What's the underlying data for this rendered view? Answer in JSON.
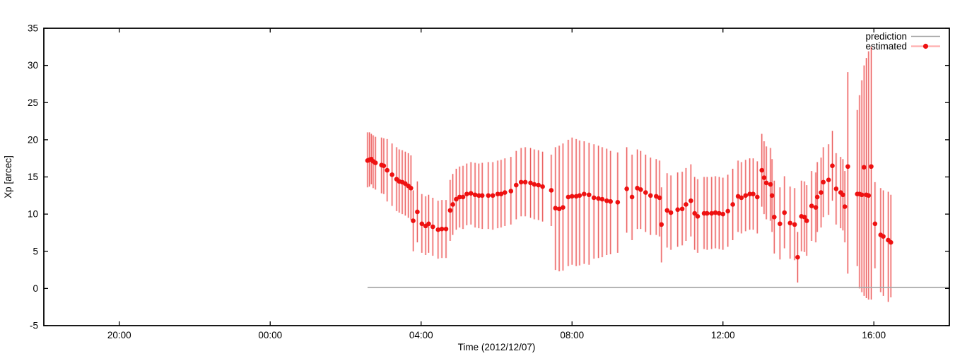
{
  "figure": {
    "background": "#ffffff",
    "axis_color": "#000000",
    "prediction_color": "#a3a3a3",
    "point_color": "#ee1111",
    "errorbar_core_color": "#e03434",
    "errorbar_halo_color": "#ff9a9a"
  },
  "legend": {
    "prediction_label": "prediction",
    "estimated_label": "estimated"
  },
  "chart_data": {
    "type": "scatter",
    "title": "",
    "xlabel": "Time (2012/12/07)",
    "ylabel": "Xp [arcec]",
    "ylim": [
      -5,
      35
    ],
    "xlim_hours_from_midnight": [
      -6,
      18
    ],
    "grid": false,
    "legend_position": "top-right-inside",
    "y_ticks": [
      {
        "v": -5,
        "label": "-5"
      },
      {
        "v": 0,
        "label": "0"
      },
      {
        "v": 5,
        "label": "5"
      },
      {
        "v": 10,
        "label": "10"
      },
      {
        "v": 15,
        "label": "15"
      },
      {
        "v": 20,
        "label": "20"
      },
      {
        "v": 25,
        "label": "25"
      },
      {
        "v": 30,
        "label": "30"
      },
      {
        "v": 35,
        "label": "35"
      }
    ],
    "x_ticks": [
      {
        "t": -4,
        "label": "20:00"
      },
      {
        "t": 0,
        "label": "00:00"
      },
      {
        "t": 4,
        "label": "04:00"
      },
      {
        "t": 8,
        "label": "08:00"
      },
      {
        "t": 12,
        "label": "12:00"
      },
      {
        "t": 16,
        "label": "16:00"
      }
    ],
    "series": [
      {
        "name": "prediction",
        "type": "line",
        "color": "#a3a3a3",
        "points_tv": [
          [
            2.58,
            0.15
          ],
          [
            18.0,
            0.15
          ]
        ]
      },
      {
        "name": "estimated",
        "type": "scatter_errorbars",
        "color": "#ee1111",
        "points_tvlh": [
          [
            2.58,
            17.2,
            13.6,
            21.0
          ],
          [
            2.63,
            17.3,
            13.7,
            21.0
          ],
          [
            2.68,
            17.4,
            14.0,
            20.8
          ],
          [
            2.73,
            17.1,
            13.5,
            20.6
          ],
          [
            2.79,
            16.9,
            13.3,
            20.4
          ],
          [
            2.95,
            16.6,
            12.8,
            20.3
          ],
          [
            3.01,
            16.5,
            12.7,
            20.2
          ],
          [
            3.1,
            15.9,
            11.7,
            20.1
          ],
          [
            3.23,
            15.3,
            11.1,
            19.5
          ],
          [
            3.35,
            14.7,
            10.4,
            19.0
          ],
          [
            3.42,
            14.4,
            10.2,
            18.7
          ],
          [
            3.5,
            14.3,
            10.0,
            18.6
          ],
          [
            3.58,
            14.1,
            9.8,
            18.4
          ],
          [
            3.66,
            13.8,
            9.5,
            18.2
          ],
          [
            3.73,
            13.5,
            9.2,
            17.9
          ],
          [
            3.79,
            9.1,
            5.0,
            13.2
          ],
          [
            3.9,
            10.3,
            6.2,
            14.4
          ],
          [
            4.02,
            8.7,
            4.8,
            12.7
          ],
          [
            4.12,
            8.4,
            4.5,
            12.4
          ],
          [
            4.2,
            8.7,
            4.8,
            12.6
          ],
          [
            4.31,
            8.3,
            4.4,
            12.2
          ],
          [
            4.45,
            7.9,
            4.0,
            11.8
          ],
          [
            4.55,
            8.0,
            4.1,
            11.9
          ],
          [
            4.66,
            8.0,
            4.1,
            11.9
          ],
          [
            4.77,
            10.5,
            6.4,
            14.6
          ],
          [
            4.84,
            11.3,
            7.2,
            15.4
          ],
          [
            4.93,
            12.0,
            7.9,
            16.1
          ],
          [
            5.02,
            12.3,
            8.2,
            16.4
          ],
          [
            5.11,
            12.3,
            8.0,
            16.5
          ],
          [
            5.21,
            12.7,
            8.5,
            16.8
          ],
          [
            5.32,
            12.8,
            8.6,
            17.0
          ],
          [
            5.43,
            12.6,
            8.2,
            16.9
          ],
          [
            5.53,
            12.5,
            8.1,
            16.8
          ],
          [
            5.62,
            12.5,
            8.0,
            16.9
          ],
          [
            5.78,
            12.5,
            8.0,
            17.0
          ],
          [
            5.9,
            12.5,
            7.9,
            17.0
          ],
          [
            6.03,
            12.7,
            8.1,
            17.2
          ],
          [
            6.12,
            12.7,
            8.2,
            17.3
          ],
          [
            6.22,
            12.9,
            8.4,
            17.5
          ],
          [
            6.38,
            13.1,
            8.6,
            17.7
          ],
          [
            6.52,
            13.9,
            9.3,
            18.5
          ],
          [
            6.65,
            14.3,
            9.7,
            18.9
          ],
          [
            6.76,
            14.3,
            9.7,
            19.0
          ],
          [
            6.9,
            14.2,
            9.5,
            18.9
          ],
          [
            7.0,
            14.0,
            9.3,
            18.7
          ],
          [
            7.11,
            13.9,
            9.2,
            18.6
          ],
          [
            7.22,
            13.7,
            9.0,
            18.4
          ],
          [
            7.45,
            13.2,
            8.4,
            18.0
          ],
          [
            7.56,
            10.8,
            2.5,
            19.0
          ],
          [
            7.66,
            10.7,
            2.3,
            19.2
          ],
          [
            7.76,
            10.9,
            2.4,
            19.5
          ],
          [
            7.9,
            12.3,
            3.0,
            20.0
          ],
          [
            8.0,
            12.4,
            3.2,
            20.3
          ],
          [
            8.11,
            12.4,
            3.0,
            20.1
          ],
          [
            8.2,
            12.5,
            3.1,
            19.9
          ],
          [
            8.32,
            12.7,
            3.3,
            19.8
          ],
          [
            8.45,
            12.6,
            3.2,
            19.6
          ],
          [
            8.58,
            12.2,
            4.0,
            19.4
          ],
          [
            8.7,
            12.1,
            4.1,
            19.2
          ],
          [
            8.8,
            12.0,
            4.2,
            19.0
          ],
          [
            8.92,
            11.8,
            4.5,
            18.8
          ],
          [
            9.02,
            11.7,
            4.6,
            18.5
          ],
          [
            9.21,
            11.6,
            4.8,
            18.3
          ],
          [
            9.45,
            13.4,
            7.5,
            19.0
          ],
          [
            9.59,
            12.3,
            6.5,
            18.0
          ],
          [
            9.73,
            13.5,
            8.0,
            18.7
          ],
          [
            9.82,
            13.3,
            8.0,
            18.5
          ],
          [
            9.95,
            12.9,
            7.6,
            18.0
          ],
          [
            10.08,
            12.5,
            7.2,
            17.6
          ],
          [
            10.23,
            12.4,
            7.2,
            17.4
          ],
          [
            10.32,
            12.2,
            7.0,
            17.2
          ],
          [
            10.37,
            8.6,
            3.5,
            13.6
          ],
          [
            10.52,
            10.5,
            5.5,
            15.5
          ],
          [
            10.62,
            10.2,
            5.2,
            15.2
          ],
          [
            10.8,
            10.6,
            5.6,
            15.6
          ],
          [
            10.92,
            10.7,
            5.8,
            15.7
          ],
          [
            11.02,
            11.3,
            6.4,
            16.2
          ],
          [
            11.15,
            11.8,
            7.0,
            16.7
          ],
          [
            11.25,
            10.1,
            5.2,
            15.0
          ],
          [
            11.33,
            9.7,
            4.8,
            14.7
          ],
          [
            11.5,
            10.1,
            5.3,
            15.0
          ],
          [
            11.58,
            10.1,
            5.2,
            15.0
          ],
          [
            11.7,
            10.1,
            5.3,
            15.0
          ],
          [
            11.8,
            10.2,
            5.4,
            15.1
          ],
          [
            11.9,
            10.1,
            5.3,
            15.0
          ],
          [
            12.0,
            10.0,
            5.2,
            14.9
          ],
          [
            12.13,
            10.4,
            5.6,
            15.3
          ],
          [
            12.26,
            11.3,
            6.5,
            16.1
          ],
          [
            12.4,
            12.4,
            7.6,
            17.2
          ],
          [
            12.49,
            12.2,
            7.4,
            17.0
          ],
          [
            12.6,
            12.5,
            7.7,
            17.3
          ],
          [
            12.71,
            12.7,
            7.9,
            17.5
          ],
          [
            12.8,
            12.7,
            7.9,
            17.5
          ],
          [
            12.91,
            12.3,
            7.4,
            17.1
          ],
          [
            13.03,
            15.9,
            11.0,
            20.8
          ],
          [
            13.09,
            14.9,
            10.0,
            19.8
          ],
          [
            13.15,
            14.2,
            9.3,
            19.1
          ],
          [
            13.26,
            14.0,
            9.1,
            18.9
          ],
          [
            13.3,
            12.5,
            7.6,
            17.4
          ],
          [
            13.36,
            9.6,
            4.7,
            14.5
          ],
          [
            13.51,
            8.7,
            3.9,
            13.6
          ],
          [
            13.63,
            10.2,
            5.4,
            15.1
          ],
          [
            13.78,
            8.8,
            4.0,
            13.7
          ],
          [
            13.9,
            8.6,
            3.8,
            13.5
          ],
          [
            13.98,
            4.2,
            0.8,
            7.6
          ],
          [
            14.08,
            9.7,
            5.0,
            14.5
          ],
          [
            14.16,
            9.6,
            4.9,
            14.4
          ],
          [
            14.22,
            9.1,
            4.4,
            13.9
          ],
          [
            14.35,
            11.1,
            6.4,
            15.8
          ],
          [
            14.46,
            10.9,
            6.2,
            15.6
          ],
          [
            14.5,
            12.3,
            7.6,
            17.0
          ],
          [
            14.6,
            12.9,
            8.2,
            17.6
          ],
          [
            14.66,
            14.3,
            9.6,
            19.0
          ],
          [
            14.8,
            14.6,
            9.9,
            19.4
          ],
          [
            14.9,
            16.5,
            11.8,
            21.2
          ],
          [
            15.0,
            13.4,
            8.6,
            18.2
          ],
          [
            15.12,
            12.9,
            8.1,
            17.7
          ],
          [
            15.18,
            12.6,
            7.8,
            17.4
          ],
          [
            15.23,
            11.0,
            6.2,
            15.8
          ],
          [
            15.31,
            16.4,
            2.0,
            29.1
          ],
          [
            15.56,
            12.7,
            3.0,
            24.0
          ],
          [
            15.62,
            12.7,
            0.0,
            26.0
          ],
          [
            15.68,
            12.6,
            -0.5,
            28.0
          ],
          [
            15.74,
            16.3,
            -1.0,
            30.0
          ],
          [
            15.8,
            12.6,
            -1.3,
            31.0
          ],
          [
            15.86,
            12.5,
            -1.5,
            31.9
          ],
          [
            15.93,
            16.4,
            -1.5,
            32.5
          ],
          [
            16.03,
            8.7,
            2.7,
            14.3
          ],
          [
            16.18,
            7.2,
            -0.5,
            13.5
          ],
          [
            16.25,
            7.0,
            -1.0,
            13.2
          ],
          [
            16.38,
            6.5,
            -1.8,
            13.0
          ],
          [
            16.45,
            6.2,
            -1.2,
            12.6
          ]
        ]
      }
    ]
  }
}
